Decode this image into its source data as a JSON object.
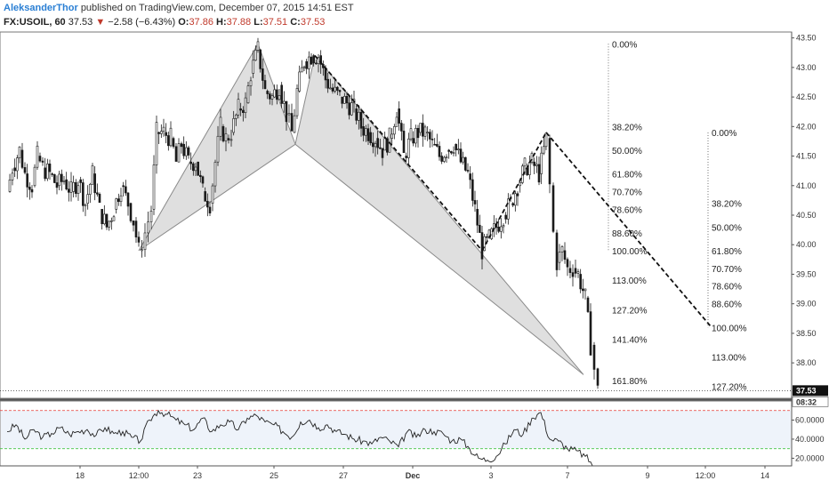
{
  "header": {
    "author": "AleksanderThor",
    "published": "published on TradingView.com, December 07, 2015 14:51 EST",
    "symbol": "FX:USOIL, 60",
    "last": "37.53",
    "change_arrow": "▼",
    "change": "−2.58 (−6.43%)",
    "o_label": "O:",
    "o_value": "37.86",
    "h_label": "H:",
    "h_value": "37.88",
    "l_label": "L:",
    "l_value": "37.51",
    "c_label": "C:",
    "c_value": "37.53"
  },
  "colors": {
    "candle": "#1a1a1a",
    "pattern_fill": "#d9d9d9",
    "pattern_stroke": "#8a8a8a",
    "osc_top": "#e53935",
    "osc_bottom": "#43c443",
    "osc_band": "#eef3fa",
    "price_box": "#111111"
  },
  "chart_data": [
    {
      "type": "candlestick",
      "title": "",
      "y_ticks": [
        "43.50",
        "43.00",
        "42.50",
        "42.00",
        "41.50",
        "41.00",
        "40.50",
        "40.00",
        "39.50",
        "39.00",
        "38.50",
        "38.00"
      ],
      "ylim": [
        37.4,
        43.6
      ],
      "x_ticks": [
        "18",
        "12:00",
        "23",
        "25",
        "27",
        "Dec",
        "3",
        "7",
        "9",
        "12:00",
        "14"
      ],
      "last_price_label": "37.53",
      "countdown_label": "08:32",
      "price_path": [
        [
          0,
          40.9
        ],
        [
          6,
          41.3
        ],
        [
          14,
          41.6
        ],
        [
          20,
          41.2
        ],
        [
          28,
          41.0
        ],
        [
          34,
          41.5
        ],
        [
          40,
          41.3
        ],
        [
          48,
          41.2
        ],
        [
          56,
          41.0
        ],
        [
          64,
          41.1
        ],
        [
          72,
          40.9
        ],
        [
          80,
          41.1
        ],
        [
          88,
          40.7
        ],
        [
          96,
          41.2
        ],
        [
          104,
          40.6
        ],
        [
          112,
          40.3
        ],
        [
          120,
          40.6
        ],
        [
          128,
          41.0
        ],
        [
          136,
          40.7
        ],
        [
          142,
          40.4
        ],
        [
          148,
          39.9
        ],
        [
          155,
          40.2
        ],
        [
          162,
          40.6
        ],
        [
          168,
          41.9
        ],
        [
          176,
          41.9
        ],
        [
          184,
          41.8
        ],
        [
          190,
          41.4
        ],
        [
          196,
          41.7
        ],
        [
          204,
          41.4
        ],
        [
          212,
          41.4
        ],
        [
          220,
          40.9
        ],
        [
          228,
          40.7
        ],
        [
          234,
          41.4
        ],
        [
          240,
          42.0
        ],
        [
          246,
          41.8
        ],
        [
          252,
          41.9
        ],
        [
          260,
          42.3
        ],
        [
          268,
          42.4
        ],
        [
          274,
          42.9
        ],
        [
          282,
          43.3
        ],
        [
          290,
          42.6
        ],
        [
          298,
          42.5
        ],
        [
          306,
          42.7
        ],
        [
          314,
          42.2
        ],
        [
          320,
          41.9
        ],
        [
          326,
          42.6
        ],
        [
          334,
          43.1
        ],
        [
          342,
          43.2
        ],
        [
          350,
          43.2
        ],
        [
          358,
          42.8
        ],
        [
          366,
          42.6
        ],
        [
          374,
          42.5
        ],
        [
          382,
          42.4
        ],
        [
          390,
          42.3
        ],
        [
          398,
          42.0
        ],
        [
          406,
          41.9
        ],
        [
          414,
          41.8
        ],
        [
          422,
          41.6
        ],
        [
          430,
          41.8
        ],
        [
          438,
          42.3
        ],
        [
          446,
          41.5
        ],
        [
          454,
          41.8
        ],
        [
          462,
          41.9
        ],
        [
          470,
          41.9
        ],
        [
          478,
          41.7
        ],
        [
          486,
          41.5
        ],
        [
          494,
          41.6
        ],
        [
          502,
          41.7
        ],
        [
          510,
          41.4
        ],
        [
          518,
          41.2
        ],
        [
          526,
          40.6
        ],
        [
          534,
          39.9
        ],
        [
          542,
          40.1
        ],
        [
          550,
          40.3
        ],
        [
          558,
          40.5
        ],
        [
          566,
          40.7
        ],
        [
          574,
          41.0
        ],
        [
          582,
          41.3
        ],
        [
          590,
          41.4
        ],
        [
          598,
          41.2
        ],
        [
          606,
          41.8
        ],
        [
          610,
          41.0
        ],
        [
          614,
          40.2
        ],
        [
          618,
          39.7
        ],
        [
          624,
          39.9
        ],
        [
          630,
          39.6
        ],
        [
          636,
          39.6
        ],
        [
          642,
          39.5
        ],
        [
          650,
          39.1
        ],
        [
          656,
          38.3
        ],
        [
          660,
          37.9
        ],
        [
          664,
          37.53
        ]
      ],
      "harmonic_pattern": {
        "X": [
          148,
          39.9
        ],
        "A": [
          282,
          43.4
        ],
        "B": [
          324,
          41.7
        ],
        "C": [
          346,
          43.2
        ],
        "D": [
          648,
          37.8
        ]
      },
      "trend_lines": [
        {
          "from": [
            346,
            43.2
          ],
          "to": [
            534,
            39.9
          ]
        },
        {
          "from": [
            534,
            39.9
          ],
          "to": [
            606,
            41.9
          ]
        },
        {
          "from": [
            606,
            41.9
          ],
          "to": [
            792,
            38.6
          ]
        }
      ],
      "fib_retracement_left": {
        "x": 684,
        "top_y": 43.4,
        "bottom_y": 39.9,
        "levels": [
          {
            "label": "0.00%",
            "y": 43.4
          },
          {
            "label": "38.20%",
            "y": 42.0
          },
          {
            "label": "50.00%",
            "y": 41.6
          },
          {
            "label": "61.80%",
            "y": 41.2
          },
          {
            "label": "70.70%",
            "y": 40.9
          },
          {
            "label": "78.60%",
            "y": 40.6
          },
          {
            "label": "88.60%",
            "y": 40.2
          },
          {
            "label": "100.00%",
            "y": 39.9
          },
          {
            "label": "113.00%",
            "y": 39.4
          },
          {
            "label": "127.20%",
            "y": 38.9
          },
          {
            "label": "141.40%",
            "y": 38.4
          },
          {
            "label": "161.80%",
            "y": 37.7
          }
        ]
      },
      "fib_retracement_right": {
        "x": 796,
        "top_y": 41.9,
        "bottom_y": 38.6,
        "levels": [
          {
            "label": "0.00%",
            "y": 41.9
          },
          {
            "label": "38.20%",
            "y": 40.7
          },
          {
            "label": "50.00%",
            "y": 40.3
          },
          {
            "label": "61.80%",
            "y": 39.9
          },
          {
            "label": "70.70%",
            "y": 39.6
          },
          {
            "label": "78.60%",
            "y": 39.3
          },
          {
            "label": "88.60%",
            "y": 39.0
          },
          {
            "label": "100.00%",
            "y": 38.6
          },
          {
            "label": "113.00%",
            "y": 38.1
          },
          {
            "label": "127.20%",
            "y": 37.6
          }
        ]
      }
    },
    {
      "type": "line",
      "title": "",
      "y_ticks": [
        "60.0000",
        "40.0000",
        "20.0000"
      ],
      "ylim": [
        12,
        80
      ],
      "upper_band": 70,
      "lower_band": 30,
      "x": [
        0,
        10,
        20,
        30,
        40,
        50,
        60,
        70,
        80,
        90,
        100,
        110,
        120,
        130,
        140,
        150,
        160,
        170,
        180,
        190,
        200,
        210,
        220,
        230,
        240,
        250,
        260,
        270,
        280,
        290,
        300,
        310,
        320,
        330,
        340,
        350,
        360,
        370,
        380,
        390,
        400,
        410,
        420,
        430,
        440,
        450,
        460,
        470,
        480,
        490,
        500,
        510,
        520,
        530,
        540,
        550,
        560,
        570,
        580,
        590,
        600,
        610,
        620,
        630,
        640,
        650,
        660
      ],
      "values": [
        48,
        55,
        40,
        50,
        42,
        46,
        52,
        45,
        48,
        50,
        44,
        52,
        46,
        48,
        42,
        38,
        60,
        70,
        66,
        60,
        55,
        50,
        62,
        48,
        55,
        58,
        50,
        62,
        65,
        58,
        55,
        48,
        42,
        58,
        60,
        52,
        55,
        48,
        45,
        40,
        38,
        35,
        42,
        38,
        32,
        48,
        42,
        50,
        48,
        46,
        38,
        40,
        30,
        20,
        18,
        22,
        35,
        50,
        45,
        62,
        68,
        40,
        38,
        30,
        28,
        22,
        12
      ]
    }
  ]
}
